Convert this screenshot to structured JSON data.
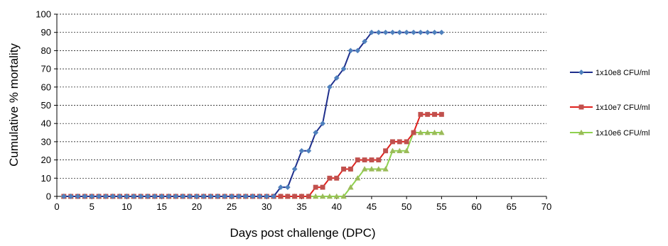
{
  "chart_data": {
    "type": "line",
    "title": "",
    "xlabel": "Days post challenge (DPC)",
    "ylabel": "Cumulative % mortality",
    "xlim": [
      0,
      70
    ],
    "ylim": [
      0,
      100
    ],
    "x_ticks": [
      0,
      5,
      10,
      15,
      20,
      25,
      30,
      35,
      40,
      45,
      50,
      55,
      60,
      65,
      70
    ],
    "y_ticks": [
      0,
      10,
      20,
      30,
      40,
      50,
      60,
      70,
      80,
      90,
      100
    ],
    "grid": "horizontal dashed",
    "legend_position": "right",
    "x": [
      1,
      2,
      3,
      4,
      5,
      6,
      7,
      8,
      9,
      10,
      11,
      12,
      13,
      14,
      15,
      16,
      17,
      18,
      19,
      20,
      21,
      22,
      23,
      24,
      25,
      26,
      27,
      28,
      29,
      30,
      31,
      32,
      33,
      34,
      35,
      36,
      37,
      38,
      39,
      40,
      41,
      42,
      43,
      44,
      45,
      46,
      47,
      48,
      49,
      50,
      51,
      52,
      53,
      54,
      55
    ],
    "series": [
      {
        "name": "1x10e8 CFU/ml",
        "color": "#1f2f8c",
        "marker_color": "#4f81bd",
        "marker": "diamond",
        "values": [
          0,
          0,
          0,
          0,
          0,
          0,
          0,
          0,
          0,
          0,
          0,
          0,
          0,
          0,
          0,
          0,
          0,
          0,
          0,
          0,
          0,
          0,
          0,
          0,
          0,
          0,
          0,
          0,
          0,
          0,
          0,
          5,
          5,
          15,
          25,
          25,
          35,
          40,
          60,
          65,
          70,
          80,
          80,
          85,
          90,
          90,
          90,
          90,
          90,
          90,
          90,
          90,
          90,
          90,
          90
        ]
      },
      {
        "name": "1x10e7 CFU/ml",
        "color": "#e0201c",
        "marker_color": "#c0504d",
        "marker": "square",
        "values": [
          0,
          0,
          0,
          0,
          0,
          0,
          0,
          0,
          0,
          0,
          0,
          0,
          0,
          0,
          0,
          0,
          0,
          0,
          0,
          0,
          0,
          0,
          0,
          0,
          0,
          0,
          0,
          0,
          0,
          0,
          0,
          0,
          0,
          0,
          0,
          0,
          5,
          5,
          10,
          10,
          15,
          15,
          20,
          20,
          20,
          20,
          25,
          30,
          30,
          30,
          35,
          45,
          45,
          45,
          45
        ]
      },
      {
        "name": "1x10e6 CFU/ml",
        "color": "#8fd14f",
        "marker_color": "#9bbb59",
        "marker": "triangle",
        "values": [
          0,
          0,
          0,
          0,
          0,
          0,
          0,
          0,
          0,
          0,
          0,
          0,
          0,
          0,
          0,
          0,
          0,
          0,
          0,
          0,
          0,
          0,
          0,
          0,
          0,
          0,
          0,
          0,
          0,
          0,
          0,
          0,
          0,
          0,
          0,
          0,
          0,
          0,
          0,
          0,
          0,
          5,
          10,
          15,
          15,
          15,
          15,
          25,
          25,
          25,
          35,
          35,
          35,
          35,
          35
        ]
      }
    ]
  }
}
